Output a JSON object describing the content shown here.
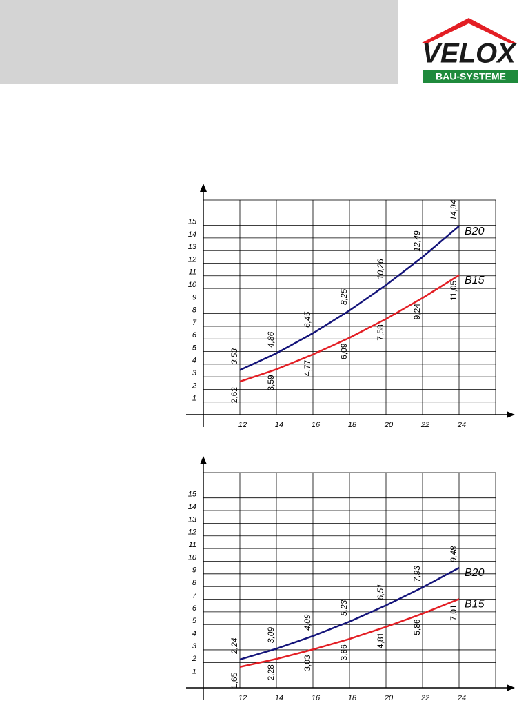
{
  "logo": {
    "brand": "VELOX",
    "tagline": "BAU-SYSTEME"
  },
  "chart_data": [
    {
      "type": "line",
      "x": [
        12,
        14,
        16,
        18,
        20,
        22,
        24
      ],
      "xlim": [
        10,
        26
      ],
      "xticks": [
        12,
        14,
        16,
        18,
        20,
        22,
        24
      ],
      "ylim": [
        0,
        17
      ],
      "yticks": [
        1,
        2,
        3,
        4,
        5,
        6,
        7,
        8,
        9,
        10,
        11,
        12,
        13,
        14,
        15
      ],
      "grid": true,
      "series": [
        {
          "name": "B20",
          "color": "#14147a",
          "values": [
            3.53,
            4.86,
            6.45,
            8.25,
            10.26,
            12.49,
            14.94
          ],
          "value_labels": [
            "3,53",
            "4,86",
            "6,45",
            "8,25",
            "10,26",
            "12,49",
            "14,94"
          ]
        },
        {
          "name": "B15",
          "color": "#e31e24",
          "values": [
            2.62,
            3.59,
            4.77,
            6.09,
            7.58,
            9.24,
            11.05
          ],
          "value_labels": [
            "2,62",
            "3,59",
            "4,77",
            "6,09",
            "7,58",
            "9,24",
            "11,05"
          ]
        }
      ]
    },
    {
      "type": "line",
      "x": [
        12,
        14,
        16,
        18,
        20,
        22,
        24
      ],
      "xlim": [
        10,
        26
      ],
      "xticks": [
        12,
        14,
        16,
        18,
        20,
        22,
        24
      ],
      "ylim": [
        0,
        17
      ],
      "yticks": [
        1,
        2,
        3,
        4,
        5,
        6,
        7,
        8,
        9,
        10,
        11,
        12,
        13,
        14,
        15
      ],
      "grid": true,
      "series": [
        {
          "name": "B20",
          "color": "#14147a",
          "values": [
            2.24,
            3.09,
            4.09,
            5.23,
            6.51,
            7.93,
            9.48
          ],
          "value_labels": [
            "2,24",
            "3,09",
            "4,09",
            "5,23",
            "6,51",
            "7,93",
            "9,48"
          ]
        },
        {
          "name": "B15",
          "color": "#e31e24",
          "values": [
            1.65,
            2.28,
            3.03,
            3.86,
            4.81,
            5.86,
            7.01
          ],
          "value_labels": [
            "1,65",
            "2,28",
            "3,03",
            "3,86",
            "4,81",
            "5,86",
            "7,01"
          ]
        }
      ]
    }
  ]
}
